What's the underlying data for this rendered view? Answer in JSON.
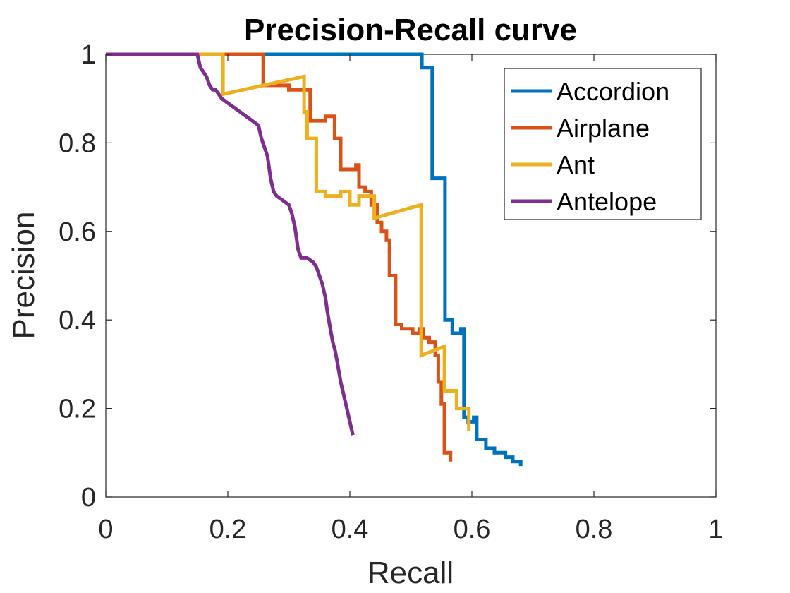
{
  "chart_data": {
    "type": "line",
    "title": "Precision-Recall curve",
    "xlabel": "Recall",
    "ylabel": "Precision",
    "xlim": [
      0,
      1
    ],
    "ylim": [
      0,
      1
    ],
    "x_ticks": [
      0,
      0.2,
      0.4,
      0.6,
      0.8,
      1
    ],
    "y_ticks": [
      0,
      0.2,
      0.4,
      0.6,
      0.8,
      1
    ],
    "x_tick_labels": [
      "0",
      "0.2",
      "0.4",
      "0.6",
      "0.8",
      "1"
    ],
    "y_tick_labels": [
      "0",
      "0.2",
      "0.4",
      "0.6",
      "0.8",
      "1"
    ],
    "grid": false,
    "legend_position": "top-right",
    "series": [
      {
        "name": "Accordion",
        "color": "#0072BD",
        "x": [
          0,
          0.518,
          0.518,
          0.535,
          0.535,
          0.556,
          0.556,
          0.568,
          0.568,
          0.582,
          0.582,
          0.587,
          0.587,
          0.594,
          0.594,
          0.603,
          0.603,
          0.608,
          0.608,
          0.623,
          0.623,
          0.637,
          0.637,
          0.655,
          0.655,
          0.667,
          0.667,
          0.68,
          0.68
        ],
        "y": [
          1,
          1,
          0.97,
          0.97,
          0.72,
          0.72,
          0.4,
          0.4,
          0.37,
          0.37,
          0.38,
          0.38,
          0.18,
          0.18,
          0.17,
          0.17,
          0.18,
          0.18,
          0.13,
          0.13,
          0.11,
          0.11,
          0.1,
          0.1,
          0.09,
          0.09,
          0.08,
          0.08,
          0.07
        ]
      },
      {
        "name": "Airplane",
        "color": "#D95319",
        "x": [
          0,
          0.258,
          0.258,
          0.3,
          0.3,
          0.335,
          0.335,
          0.36,
          0.36,
          0.375,
          0.375,
          0.385,
          0.385,
          0.395,
          0.395,
          0.41,
          0.41,
          0.415,
          0.415,
          0.425,
          0.425,
          0.435,
          0.435,
          0.445,
          0.445,
          0.452,
          0.452,
          0.46,
          0.46,
          0.465,
          0.465,
          0.475,
          0.475,
          0.485,
          0.485,
          0.503,
          0.503,
          0.515,
          0.515,
          0.52,
          0.52,
          0.53,
          0.53,
          0.54,
          0.54,
          0.545,
          0.545,
          0.55,
          0.55,
          0.555,
          0.555,
          0.565,
          0.565
        ],
        "y": [
          1,
          1,
          0.93,
          0.93,
          0.92,
          0.92,
          0.85,
          0.85,
          0.86,
          0.86,
          0.81,
          0.81,
          0.74,
          0.74,
          0.74,
          0.74,
          0.75,
          0.75,
          0.7,
          0.7,
          0.69,
          0.69,
          0.66,
          0.66,
          0.62,
          0.62,
          0.6,
          0.6,
          0.58,
          0.58,
          0.5,
          0.5,
          0.39,
          0.39,
          0.38,
          0.38,
          0.37,
          0.37,
          0.38,
          0.38,
          0.36,
          0.36,
          0.35,
          0.35,
          0.32,
          0.32,
          0.26,
          0.26,
          0.21,
          0.21,
          0.1,
          0.1,
          0.08
        ]
      },
      {
        "name": "Ant",
        "color": "#EDB120",
        "x": [
          0,
          0.192,
          0.192,
          0.325,
          0.325,
          0.33,
          0.33,
          0.345,
          0.345,
          0.36,
          0.36,
          0.385,
          0.385,
          0.4,
          0.4,
          0.415,
          0.415,
          0.44,
          0.44,
          0.517,
          0.517,
          0.555,
          0.555,
          0.56,
          0.56,
          0.575,
          0.575,
          0.595,
          0.595
        ],
        "y": [
          1,
          1,
          0.91,
          0.95,
          0.87,
          0.87,
          0.81,
          0.81,
          0.69,
          0.69,
          0.68,
          0.68,
          0.69,
          0.69,
          0.66,
          0.66,
          0.68,
          0.68,
          0.63,
          0.66,
          0.32,
          0.34,
          0.24,
          0.24,
          0.24,
          0.24,
          0.2,
          0.2,
          0.15
        ]
      },
      {
        "name": "Antelope",
        "color": "#7E2F8E",
        "x": [
          0,
          0.15,
          0.155,
          0.16,
          0.165,
          0.17,
          0.175,
          0.18,
          0.19,
          0.2,
          0.21,
          0.22,
          0.23,
          0.24,
          0.25,
          0.255,
          0.265,
          0.27,
          0.275,
          0.28,
          0.29,
          0.3,
          0.305,
          0.31,
          0.315,
          0.32,
          0.33,
          0.34,
          0.345,
          0.35,
          0.355,
          0.36,
          0.363,
          0.368,
          0.372,
          0.376,
          0.38,
          0.385,
          0.39,
          0.395,
          0.4,
          0.405
        ],
        "y": [
          1,
          1,
          0.97,
          0.96,
          0.95,
          0.93,
          0.92,
          0.92,
          0.9,
          0.89,
          0.88,
          0.87,
          0.86,
          0.85,
          0.84,
          0.81,
          0.77,
          0.72,
          0.69,
          0.68,
          0.67,
          0.66,
          0.64,
          0.61,
          0.56,
          0.54,
          0.54,
          0.53,
          0.52,
          0.5,
          0.48,
          0.45,
          0.42,
          0.38,
          0.35,
          0.33,
          0.3,
          0.26,
          0.23,
          0.2,
          0.17,
          0.14
        ]
      }
    ]
  }
}
